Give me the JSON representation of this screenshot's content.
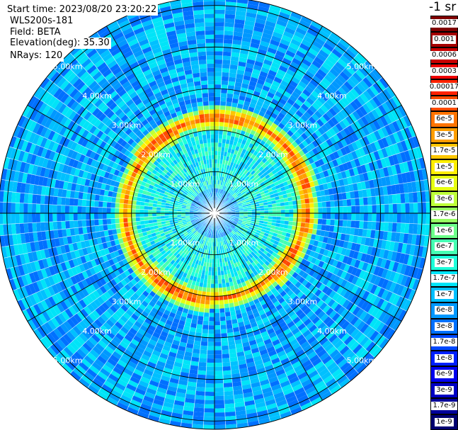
{
  "header": {
    "start_time": "Start time: 2023/08/20 23:20:22",
    "station": "WLS200s-181",
    "field": "Field: BETA",
    "elevation": "Elevation(deg): 35.30",
    "nrays": "NRays: 120"
  },
  "colorbar": {
    "unit": "-1 sr",
    "bins": [
      {
        "label": "0.0017",
        "color": "#7f0000"
      },
      {
        "label": "0.001",
        "color": "#a50000"
      },
      {
        "label": "0.0006",
        "color": "#c80000"
      },
      {
        "label": "0.0003",
        "color": "#ee0000"
      },
      {
        "label": "0.00017",
        "color": "#ff2200"
      },
      {
        "label": "0.0001",
        "color": "#ff4a00"
      },
      {
        "label": "6e-5",
        "color": "#ff7400"
      },
      {
        "label": "3e-5",
        "color": "#ff9e00"
      },
      {
        "label": "1.7e-5",
        "color": "#ffc600"
      },
      {
        "label": "1e-5",
        "color": "#ffee00"
      },
      {
        "label": "6e-6",
        "color": "#e6ff11"
      },
      {
        "label": "3e-6",
        "color": "#beff39"
      },
      {
        "label": "1.7e-6",
        "color": "#96ff61"
      },
      {
        "label": "1e-6",
        "color": "#6dff8a"
      },
      {
        "label": "6e-7",
        "color": "#45ffb2"
      },
      {
        "label": "3e-7",
        "color": "#1dffda"
      },
      {
        "label": "1.7e-7",
        "color": "#00e4f8"
      },
      {
        "label": "1e-7",
        "color": "#00c0ff"
      },
      {
        "label": "6e-8",
        "color": "#0098ff"
      },
      {
        "label": "3e-8",
        "color": "#0070ff"
      },
      {
        "label": "1.7e-8",
        "color": "#0048ff"
      },
      {
        "label": "1e-8",
        "color": "#0020ff"
      },
      {
        "label": "6e-9",
        "color": "#0000ee"
      },
      {
        "label": "3e-9",
        "color": "#0000c4"
      },
      {
        "label": "1.7e-9",
        "color": "#00009a"
      },
      {
        "label": "1e-9",
        "color": "#000070"
      }
    ]
  },
  "chart_data": {
    "type": "heatmap",
    "projection": "polar (PPI scan)",
    "field": "BETA",
    "n_rays": 120,
    "elevation_deg": 35.3,
    "range_max_km": 5.2,
    "range_ring_labels": [
      "1.00km",
      "2.00km",
      "3.00km",
      "4.00km",
      "5.00km"
    ],
    "range_rings_km": [
      1,
      2,
      3,
      4,
      5
    ],
    "spokes_deg": [
      0,
      30,
      60,
      90,
      120,
      150,
      180,
      210,
      240,
      270,
      300,
      330
    ],
    "features": [
      {
        "name": "inner region",
        "range_km": [
          0,
          2.0
        ],
        "approx_value": "1.7e-7 to 3e-7"
      },
      {
        "name": "high backscatter ring",
        "range_km": [
          2.0,
          2.4
        ],
        "approx_value": "1.7e-5 to 1e-4"
      },
      {
        "name": "outer background",
        "range_km": [
          2.4,
          5.2
        ],
        "approx_value": "3e-8 to 1e-7"
      }
    ]
  }
}
